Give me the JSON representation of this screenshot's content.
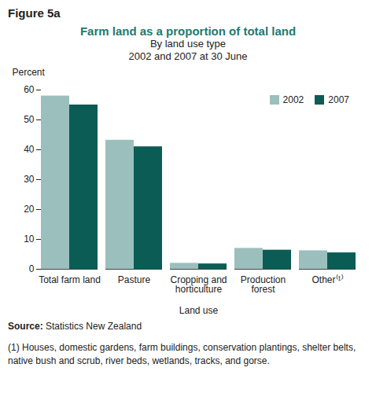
{
  "chart_data": {
    "type": "bar",
    "figure_label": "Figure 5a",
    "title": "Farm land as a proportion of total land",
    "subtitle": [
      "By land use type",
      "2002 and 2007 at 30 June"
    ],
    "categories": [
      "Total farm land",
      "Pasture",
      "Cropping and\nhorticulture",
      "Production\nforest",
      "Other⁽¹⁾"
    ],
    "series": [
      {
        "name": "2002",
        "color": "#9bbfbd",
        "values": [
          58,
          43.2,
          2.0,
          7.0,
          6.2
        ]
      },
      {
        "name": "2007",
        "color": "#0b5c55",
        "values": [
          55,
          41,
          1.8,
          6.4,
          5.5
        ]
      }
    ],
    "y_label": "Percent",
    "x_label": "Land use",
    "ylim": [
      0,
      60
    ],
    "yticks": [
      0,
      10,
      20,
      30,
      40,
      50,
      60
    ],
    "grid": false,
    "legend": "top-right",
    "source_label": "Source:",
    "source": "Statistics New Zealand",
    "footnote": "(1) Houses, domestic gardens, farm buildings, conservation plantings, shelter belts, native bush and scrub, river beds, wetlands, tracks, and gorse."
  }
}
